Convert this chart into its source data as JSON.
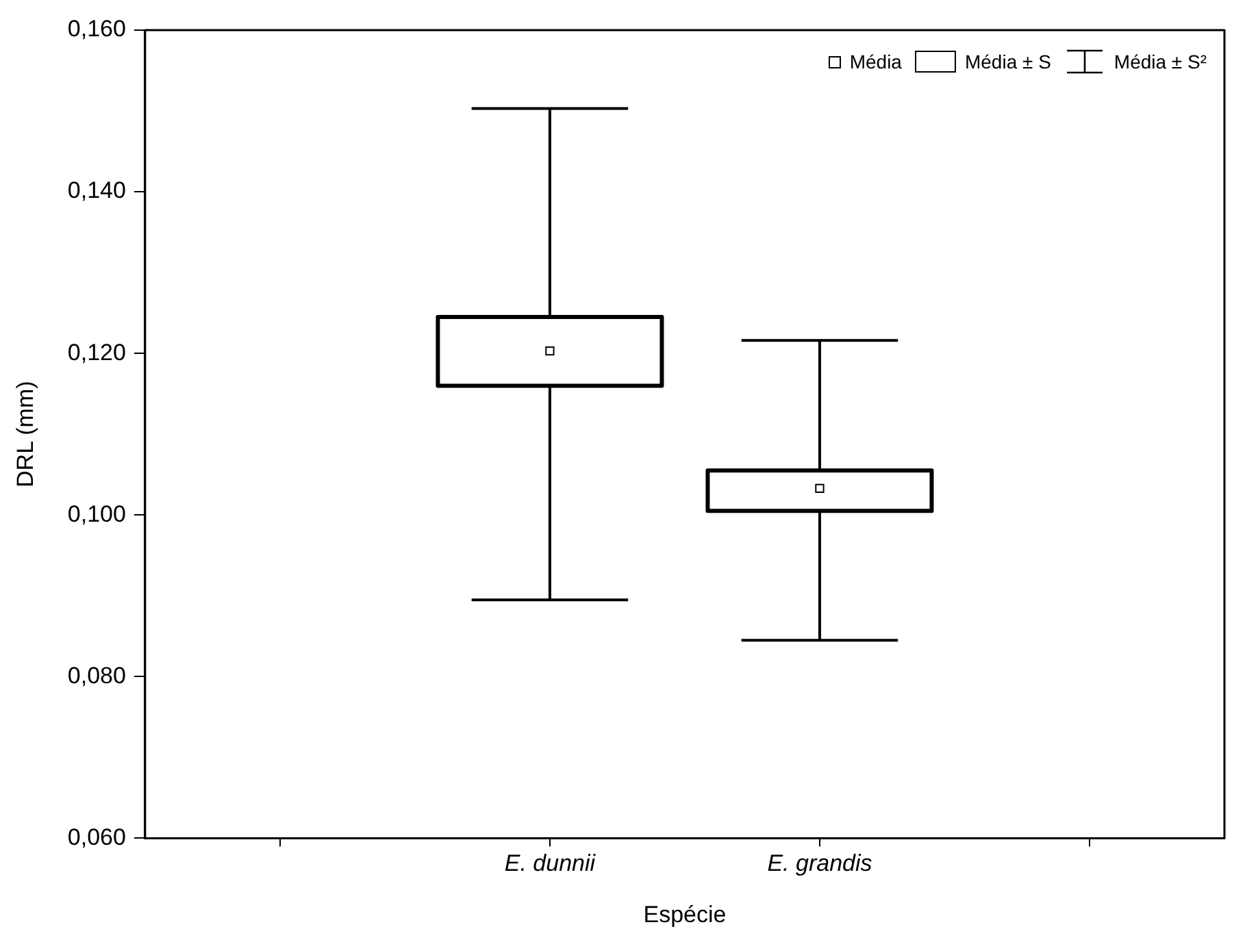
{
  "chart_data": {
    "type": "box",
    "xlabel": "Espécie",
    "ylabel": "DRL (mm)",
    "categories": [
      null,
      "E. dunnii",
      "E. grandis",
      null
    ],
    "boxes": [
      null,
      {
        "low": 0.0895,
        "q1": 0.116,
        "median": 0.1203,
        "q3": 0.1245,
        "high": 0.1503
      },
      {
        "low": 0.0845,
        "q1": 0.1005,
        "median": 0.1033,
        "q3": 0.1055,
        "high": 0.1216
      },
      null
    ],
    "color": "#000000",
    "marker": "square",
    "grid": false,
    "ylim": [
      0.06,
      0.16
    ],
    "yticks": [
      {
        "value": 0.06,
        "label": "0,060"
      },
      {
        "value": 0.08,
        "label": "0,080"
      },
      {
        "value": 0.1,
        "label": "0,100"
      },
      {
        "value": 0.12,
        "label": "0,120"
      },
      {
        "value": 0.14,
        "label": "0,140"
      },
      {
        "value": 0.16,
        "label": "0,160"
      }
    ],
    "annotations": [
      "Média",
      "Média ± S",
      "Média ± S²"
    ]
  }
}
